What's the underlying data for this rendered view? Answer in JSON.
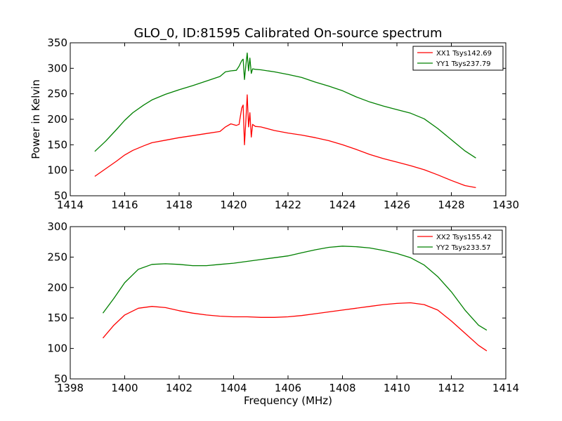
{
  "figure": {
    "title": "GLO_0, ID:81595 Calibrated On-source spectrum"
  },
  "chart_data": [
    {
      "type": "line",
      "title": "GLO_0, ID:81595 Calibrated On-source spectrum",
      "xlabel": "",
      "ylabel": "Power in Kelvin",
      "xlim": [
        1414,
        1430
      ],
      "ylim": [
        50,
        350
      ],
      "xticks": [
        "1414",
        "1416",
        "1418",
        "1420",
        "1422",
        "1424",
        "1426",
        "1428",
        "1430"
      ],
      "yticks": [
        "50",
        "100",
        "150",
        "200",
        "250",
        "300",
        "350"
      ],
      "legend_position": "top-right",
      "grid": false,
      "series": [
        {
          "name": "XX1 Tsys142.69",
          "color": "#ff0000",
          "x": [
            1414.9,
            1415.3,
            1415.7,
            1416.0,
            1416.3,
            1416.7,
            1417.0,
            1417.5,
            1418.0,
            1418.5,
            1419.0,
            1419.5,
            1419.7,
            1419.9,
            1420.1,
            1420.2,
            1420.3,
            1420.35,
            1420.4,
            1420.45,
            1420.5,
            1420.55,
            1420.6,
            1420.65,
            1420.7,
            1420.8,
            1421.0,
            1421.5,
            1422.0,
            1422.5,
            1423.0,
            1423.5,
            1424.0,
            1424.5,
            1425.0,
            1425.5,
            1426.0,
            1426.5,
            1427.0,
            1427.5,
            1428.0,
            1428.5,
            1428.9
          ],
          "y": [
            88,
            103,
            118,
            130,
            139,
            148,
            154,
            159,
            164,
            168,
            172,
            176,
            185,
            191,
            188,
            190,
            222,
            228,
            150,
            195,
            248,
            185,
            213,
            165,
            190,
            186,
            185,
            178,
            173,
            169,
            164,
            158,
            150,
            141,
            131,
            123,
            116,
            109,
            101,
            91,
            80,
            70,
            66
          ]
        },
        {
          "name": "YY1 Tsys237.79",
          "color": "#008000",
          "x": [
            1414.9,
            1415.3,
            1415.7,
            1416.0,
            1416.3,
            1416.7,
            1417.0,
            1417.5,
            1418.0,
            1418.5,
            1419.0,
            1419.5,
            1419.7,
            1419.9,
            1420.1,
            1420.2,
            1420.3,
            1420.35,
            1420.4,
            1420.45,
            1420.5,
            1420.55,
            1420.6,
            1420.65,
            1420.7,
            1420.8,
            1421.0,
            1421.5,
            1422.0,
            1422.5,
            1423.0,
            1423.5,
            1424.0,
            1424.5,
            1425.0,
            1425.5,
            1426.0,
            1426.5,
            1427.0,
            1427.5,
            1428.0,
            1428.5,
            1428.9
          ],
          "y": [
            137,
            157,
            180,
            198,
            213,
            228,
            238,
            249,
            258,
            266,
            275,
            284,
            293,
            295,
            296,
            304,
            315,
            318,
            278,
            305,
            330,
            295,
            320,
            290,
            299,
            298,
            297,
            293,
            288,
            282,
            273,
            265,
            256,
            244,
            234,
            226,
            219,
            212,
            201,
            182,
            160,
            138,
            124
          ]
        }
      ]
    },
    {
      "type": "line",
      "title": "",
      "xlabel": "Frequency (MHz)",
      "ylabel": "",
      "xlim": [
        1398,
        1414
      ],
      "ylim": [
        50,
        300
      ],
      "xticks": [
        "1398",
        "1400",
        "1402",
        "1404",
        "1406",
        "1408",
        "1410",
        "1412",
        "1414"
      ],
      "yticks": [
        "50",
        "100",
        "150",
        "200",
        "250",
        "300"
      ],
      "legend_position": "top-right",
      "grid": false,
      "series": [
        {
          "name": "XX2 Tsys155.42",
          "color": "#ff0000",
          "x": [
            1399.2,
            1399.6,
            1400.0,
            1400.5,
            1401.0,
            1401.5,
            1402.0,
            1402.5,
            1403.0,
            1403.5,
            1404.0,
            1404.5,
            1405.0,
            1405.5,
            1406.0,
            1406.5,
            1407.0,
            1407.5,
            1408.0,
            1408.5,
            1409.0,
            1409.5,
            1410.0,
            1410.5,
            1411.0,
            1411.5,
            1412.0,
            1412.5,
            1413.0,
            1413.3
          ],
          "y": [
            117,
            138,
            155,
            166,
            169,
            167,
            162,
            158,
            155,
            153,
            152,
            152,
            151,
            151,
            152,
            154,
            157,
            160,
            163,
            166,
            169,
            172,
            174,
            175,
            172,
            163,
            145,
            125,
            105,
            96
          ]
        },
        {
          "name": "YY2 Tsys233.57",
          "color": "#008000",
          "x": [
            1399.2,
            1399.6,
            1400.0,
            1400.5,
            1401.0,
            1401.5,
            1402.0,
            1402.5,
            1403.0,
            1403.5,
            1404.0,
            1404.5,
            1405.0,
            1405.5,
            1406.0,
            1406.5,
            1407.0,
            1407.5,
            1408.0,
            1408.5,
            1409.0,
            1409.5,
            1410.0,
            1410.5,
            1411.0,
            1411.5,
            1412.0,
            1412.5,
            1413.0,
            1413.3
          ],
          "y": [
            158,
            182,
            208,
            230,
            238,
            239,
            238,
            236,
            236,
            238,
            240,
            243,
            246,
            249,
            252,
            257,
            262,
            266,
            268,
            267,
            265,
            261,
            256,
            249,
            237,
            218,
            193,
            163,
            138,
            130
          ]
        }
      ]
    }
  ]
}
